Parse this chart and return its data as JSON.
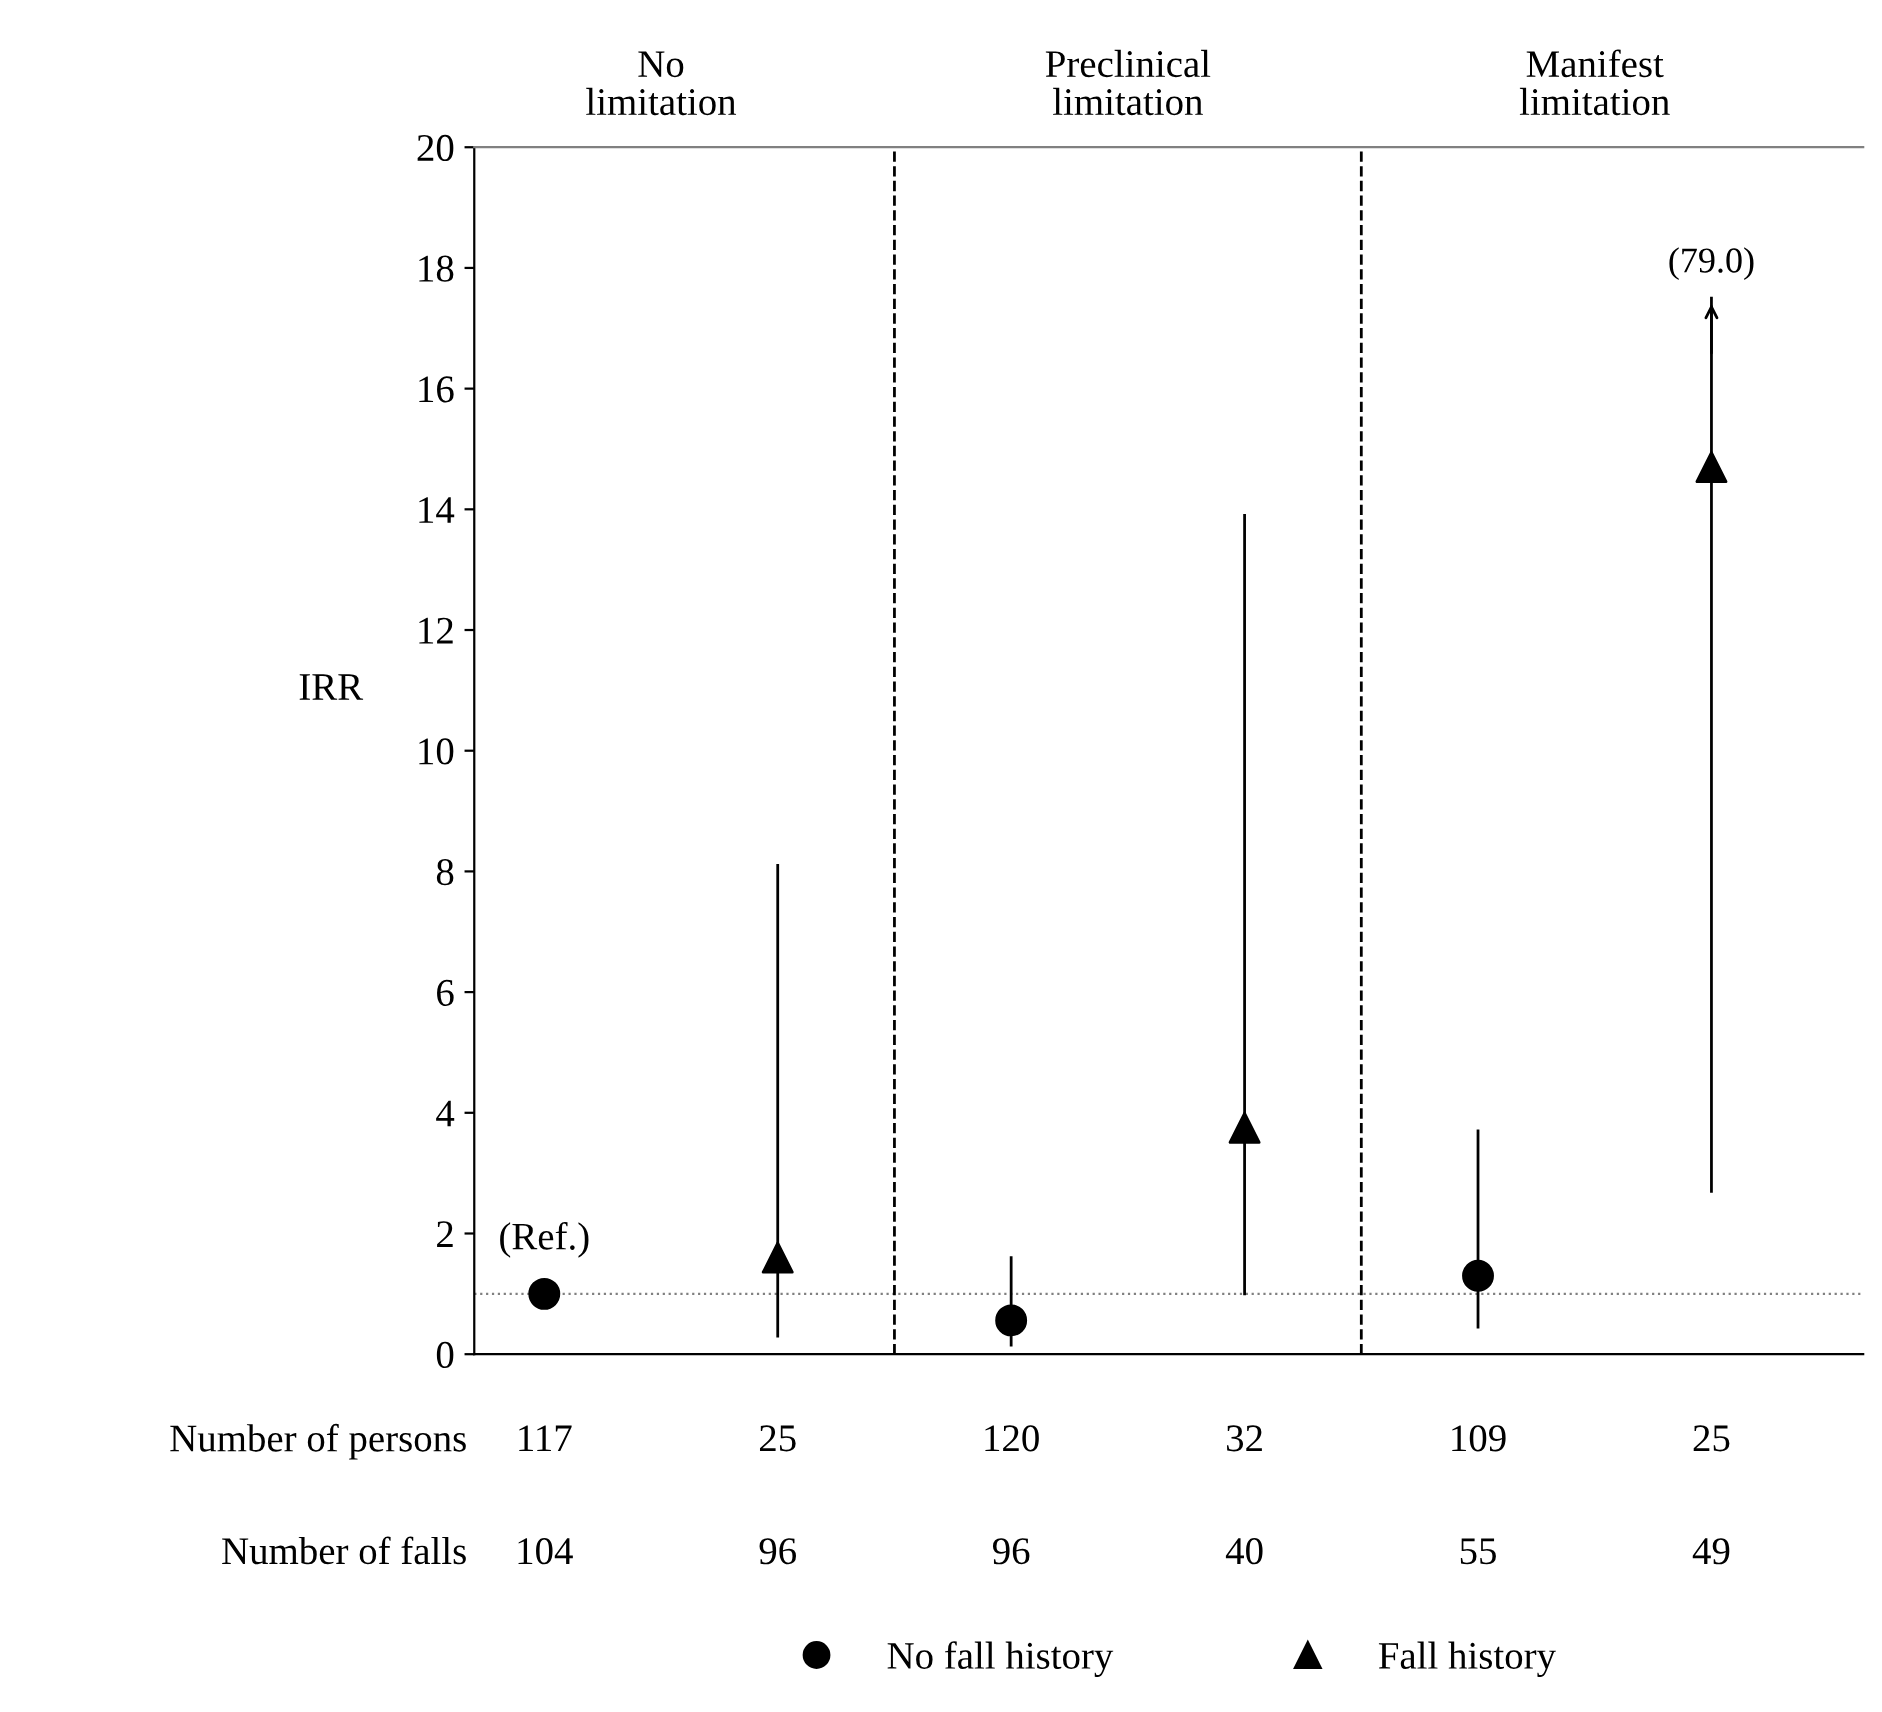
{
  "chart_data": {
    "type": "scatter",
    "ylabel": "IRR",
    "categories": [
      null,
      null,
      null,
      null,
      null,
      null
    ],
    "ylim": [
      0,
      20
    ],
    "yticks": [
      0,
      2,
      4,
      6,
      8,
      10,
      12,
      14,
      16,
      18,
      20
    ],
    "grid": false,
    "legend": "bottom",
    "series": [
      {
        "name": "No fall history",
        "color": "#000000",
        "marker": "circle",
        "values": [
          1.0,
          null,
          0.56,
          null,
          1.3,
          null
        ],
        "errors": [
          null,
          null,
          [
            0.15,
            1.6
          ],
          null,
          [
            0.45,
            3.7
          ],
          null
        ]
      },
      {
        "name": "Fall history",
        "color": "#000000",
        "marker": "triangle",
        "values": [
          null,
          1.6,
          null,
          3.75,
          null,
          14.7
        ],
        "errors": [
          null,
          [
            0.3,
            8.1
          ],
          null,
          [
            1.0,
            13.9
          ],
          null,
          [
            2.7,
            17.5
          ]
        ]
      }
    ],
    "ref_lines": [
      {
        "axis": "y",
        "value": 1,
        "color": "#808080",
        "line_style": "dotted"
      }
    ],
    "annotations": [
      "No\nlimitation",
      "Preclinical\nlimitation",
      "Manifest\nlimitation",
      {
        "text": "(Ref.)",
        "y": 1.0
      },
      {
        "text": "(79.0)",
        "y": 17.5
      },
      "Number of persons",
      "117",
      "25",
      "120",
      "32",
      "109",
      "25",
      "Number of falls",
      "104",
      "96",
      "96",
      "40",
      "55",
      "49"
    ]
  }
}
